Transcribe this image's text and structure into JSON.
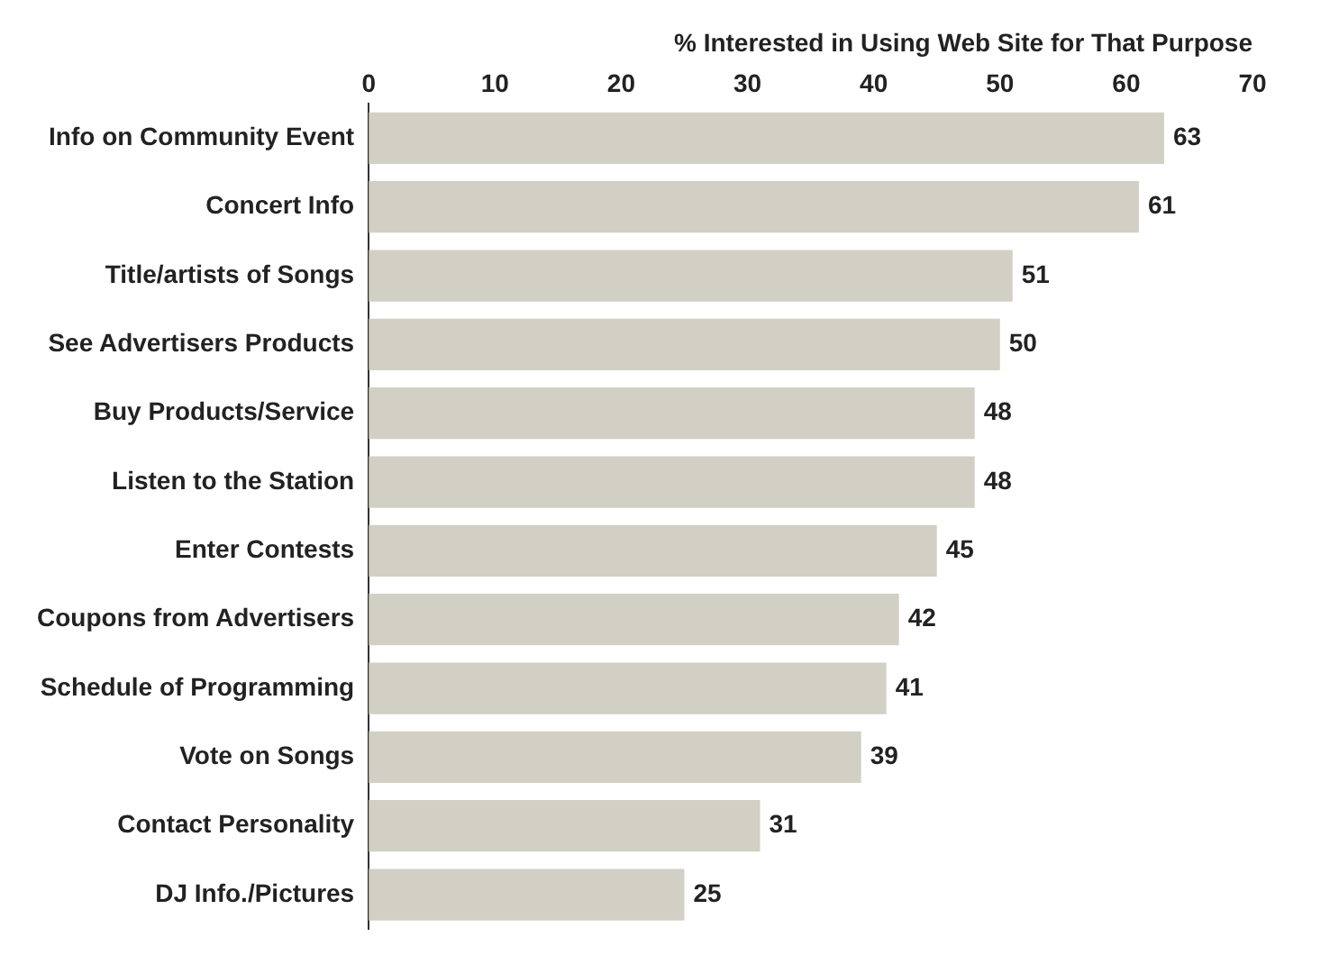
{
  "chart_data": {
    "type": "bar",
    "orientation": "horizontal",
    "xlabel": "% Interested in Using Web Site for That Purpose",
    "categories": [
      "Info on Community Event",
      "Concert Info",
      "Title/artists of Songs",
      "See Advertisers Products",
      "Buy Products/Service",
      "Listen to the Station",
      "Enter Contests",
      "Coupons from Advertisers",
      "Schedule of Programming",
      "Vote on Songs",
      "Contact Personality",
      "DJ Info./Pictures"
    ],
    "values": [
      63,
      61,
      51,
      50,
      48,
      48,
      45,
      42,
      41,
      39,
      31,
      25
    ],
    "color": "#d2d0c4",
    "xlim": [
      0,
      70
    ],
    "xticks": [
      0,
      10,
      20,
      30,
      40,
      50,
      60,
      70
    ],
    "data_labels": true,
    "grid": false,
    "legend": false
  }
}
